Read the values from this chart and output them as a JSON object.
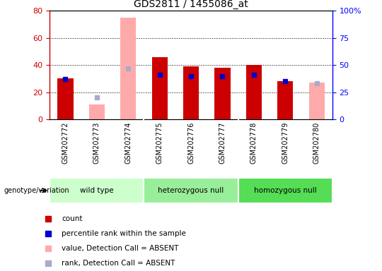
{
  "title": "GDS2811 / 1455086_at",
  "samples": [
    "GSM202772",
    "GSM202773",
    "GSM202774",
    "GSM202775",
    "GSM202776",
    "GSM202777",
    "GSM202778",
    "GSM202779",
    "GSM202780"
  ],
  "count_values": [
    30,
    null,
    null,
    46,
    39,
    38,
    40,
    28,
    null
  ],
  "percentile_rank": [
    37,
    null,
    null,
    41,
    40,
    40,
    41,
    35,
    null
  ],
  "absent_value": [
    null,
    11,
    75,
    null,
    null,
    null,
    null,
    null,
    27
  ],
  "absent_rank": [
    null,
    20,
    47,
    null,
    null,
    null,
    null,
    null,
    33
  ],
  "genotype_groups": [
    {
      "label": "wild type",
      "start": 0,
      "end": 3,
      "color": "#ccffcc"
    },
    {
      "label": "heterozygous null",
      "start": 3,
      "end": 6,
      "color": "#99ee99"
    },
    {
      "label": "homozygous null",
      "start": 6,
      "end": 9,
      "color": "#55dd55"
    }
  ],
  "left_ylim": [
    0,
    80
  ],
  "right_ylim": [
    0,
    100
  ],
  "left_yticks": [
    0,
    20,
    40,
    60,
    80
  ],
  "right_yticks": [
    0,
    25,
    50,
    75,
    100
  ],
  "right_yticklabels": [
    "0",
    "25",
    "50",
    "75",
    "100%"
  ],
  "bar_color_count": "#cc0000",
  "bar_color_absent": "#ffaaaa",
  "dot_color_present": "#0000cc",
  "dot_color_absent": "#aaaacc",
  "plot_bg": "#ffffff",
  "xtick_area_bg": "#d8d8d8",
  "grid_color": "black",
  "legend_items": [
    {
      "color": "#cc0000",
      "label": "count"
    },
    {
      "color": "#0000cc",
      "label": "percentile rank within the sample"
    },
    {
      "color": "#ffaaaa",
      "label": "value, Detection Call = ABSENT"
    },
    {
      "color": "#aaaacc",
      "label": "rank, Detection Call = ABSENT"
    }
  ],
  "bar_width": 0.5
}
